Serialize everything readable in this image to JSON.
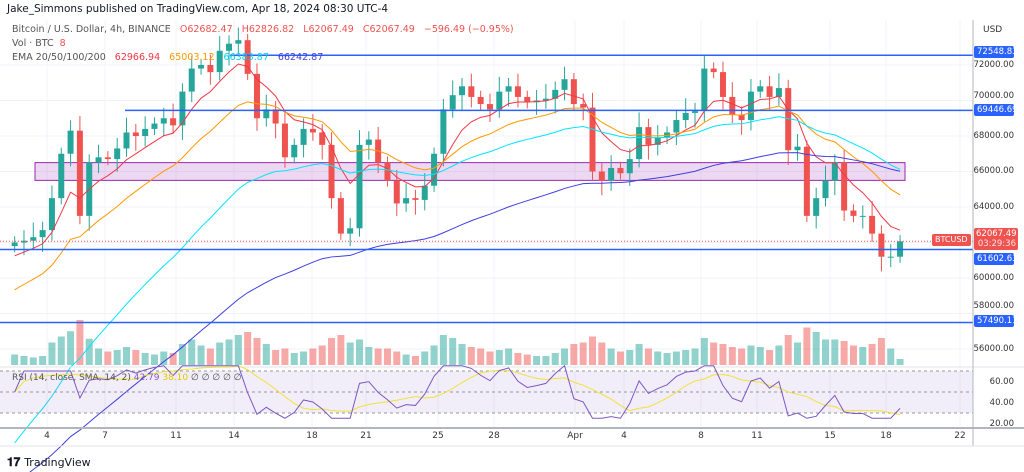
{
  "header": {
    "published": "Jake_Simmons published on TradingView.com, Apr 18, 2024 08:30 UTC-4"
  },
  "legend": {
    "symbol": "Bitcoin / U.S. Dollar, 4h, BINANCE",
    "open": "O62682.47",
    "high": "H62826.82",
    "low": "L62067.49",
    "close": "C62067.49",
    "change": "−596.49 (−0.95%)",
    "vol_label": "Vol · BTC",
    "vol_value": "8",
    "ema_label": "EMA 20/50/100/200",
    "ema20": "62966.94",
    "ema50": "65003.12",
    "ema100": "66383.87",
    "ema200": "66242.87"
  },
  "rsi": {
    "label": "RSI (14, close, SMA, 14, 2)",
    "value": "42.79",
    "sma": "38.10",
    "extras": "∅ ∅ ∅ ∅ ∅",
    "ticks": [
      "60.00",
      "40.00",
      "20.00"
    ]
  },
  "price_axis": {
    "currency": "USD",
    "ticks": [
      "72000.00",
      "70000.00",
      "68000.00",
      "66000.00",
      "64000.00",
      "60000.00",
      "58000.00",
      "56000.00"
    ]
  },
  "levels": [
    {
      "label": "72548.83",
      "value": 72548.83
    },
    {
      "label": "69446.69",
      "value": 69446.69
    },
    {
      "label": "61602.63",
      "value": 61602.63
    },
    {
      "label": "57490.11",
      "value": 57490.11
    }
  ],
  "current": {
    "symbol": "BTCUSD",
    "price": "62067.49",
    "countdown": "03:29:36"
  },
  "time_axis": [
    "4",
    "7",
    "11",
    "14",
    "18",
    "21",
    "25",
    "28",
    "Apr",
    "4",
    "8",
    "11",
    "15",
    "18",
    "22"
  ],
  "brand": {
    "logo": "TradingView"
  },
  "colors": {
    "up": "#26a69a",
    "down": "#ef5350",
    "level": "#2962ff",
    "zone": "#9c27b0",
    "ema20": "#f23645",
    "ema50": "#ff9800",
    "ema100": "#00e5ff",
    "ema200": "#3f3fe0",
    "rsi": "#7e57c2",
    "rsi_sma": "#f2e13a"
  },
  "chart_data": {
    "type": "candlestick",
    "interval_sampled": "12h",
    "start": "2024-03-02",
    "end": "2024-04-18",
    "ylim": [
      55000,
      74000
    ],
    "zone": [
      65500,
      66500
    ],
    "closes": [
      62000,
      62100,
      62300,
      62700,
      64500,
      67000,
      68300,
      63500,
      66500,
      66800,
      66700,
      67300,
      68200,
      68000,
      68400,
      68700,
      69000,
      68600,
      70500,
      71800,
      72000,
      71600,
      72800,
      73200,
      73400,
      71500,
      69000,
      69500,
      68700,
      66800,
      67500,
      68400,
      68200,
      67500,
      64500,
      62500,
      62800,
      67500,
      67800,
      66500,
      65500,
      64200,
      64500,
      64400,
      65200,
      67000,
      69500,
      70300,
      70800,
      70200,
      69800,
      69500,
      70500,
      70800,
      70200,
      69900,
      70000,
      70100,
      70600,
      71200,
      69800,
      69600,
      66000,
      65500,
      66200,
      65900,
      66700,
      68500,
      67500,
      67900,
      68200,
      68900,
      69300,
      69400,
      71800,
      71600,
      70200,
      69200,
      68900,
      70500,
      70800,
      70200,
      70700,
      67200,
      67400,
      63500,
      64500,
      65500,
      66500,
      63800,
      63500,
      63500,
      62500,
      61200,
      61200,
      62067.49
    ],
    "volume": [
      14,
      12,
      10,
      12,
      30,
      38,
      45,
      60,
      35,
      22,
      18,
      20,
      24,
      20,
      16,
      14,
      18,
      16,
      28,
      34,
      26,
      22,
      30,
      34,
      40,
      44,
      36,
      28,
      20,
      22,
      16,
      18,
      22,
      26,
      36,
      40,
      30,
      34,
      24,
      22,
      22,
      18,
      14,
      12,
      18,
      26,
      40,
      36,
      28,
      24,
      22,
      18,
      20,
      22,
      16,
      14,
      12,
      12,
      16,
      22,
      28,
      30,
      38,
      30,
      22,
      18,
      20,
      28,
      22,
      18,
      16,
      18,
      20,
      22,
      36,
      30,
      28,
      24,
      22,
      26,
      24,
      20,
      26,
      40,
      30,
      50,
      44,
      34,
      34,
      32,
      26,
      24,
      28,
      36,
      22,
      8
    ]
  }
}
